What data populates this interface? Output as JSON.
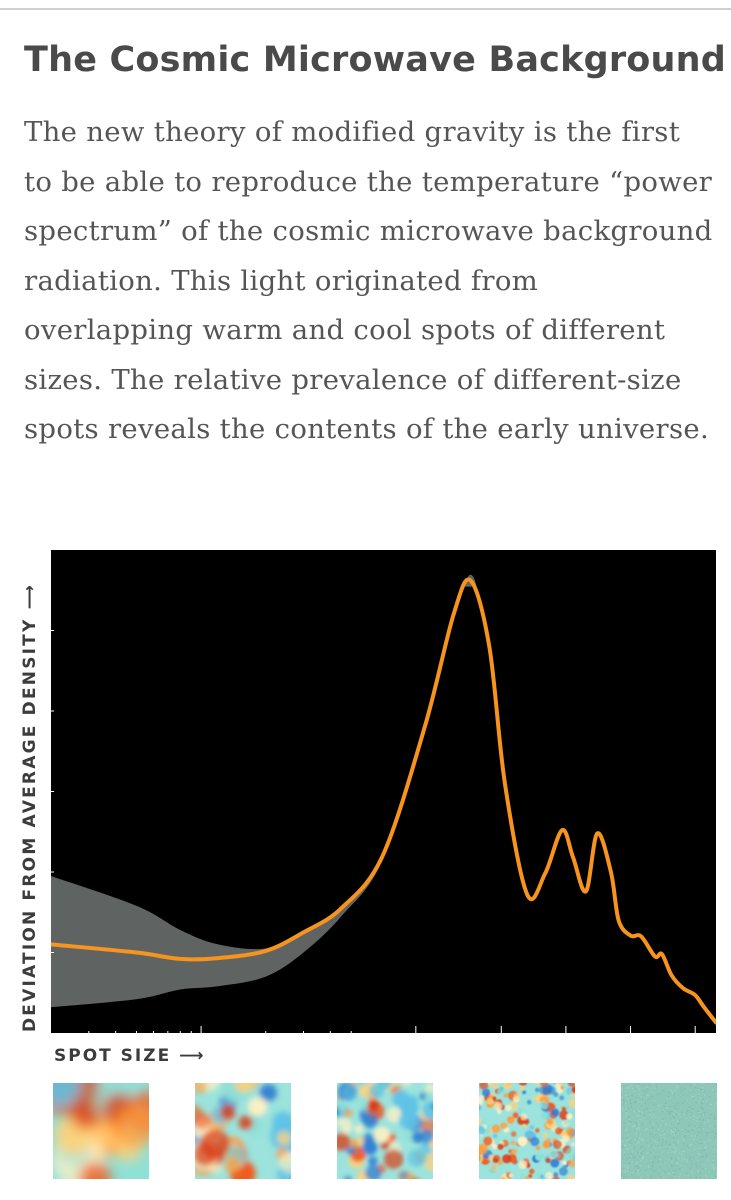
{
  "title": "The Cosmic Microwave Background",
  "paragraph": "The new theory of modified gravity is the first to be able to reproduce the temperature “power spectrum” of the cosmic microwave background radiation. This light originated from overlapping warm and cool spots of different sizes. The relative prevalence of different-size spots reveals the contents of the early universe.",
  "colors": {
    "curve": "#f7941d",
    "band": "#5f6462",
    "background": "#000000",
    "text": "#555555"
  },
  "chart_data": {
    "type": "line",
    "xlabel": "SPOT SIZE ⟶",
    "ylabel": "DEVIATION FROM AVERAGE DENSITY ⟶",
    "x_scale": "log",
    "xlim": [
      2,
      2500
    ],
    "ylim": [
      0,
      6000
    ],
    "grid": false,
    "series": [
      {
        "x": [
          2,
          5,
          8,
          12,
          20,
          30,
          45,
          70,
          110,
          150,
          180,
          220,
          260,
          330,
          400,
          480,
          540,
          620,
          700,
          810,
          880,
          1000,
          1120,
          1300,
          1400,
          1550,
          1750,
          2000,
          2200,
          2500
        ],
        "y": [
          1100,
          1000,
          920,
          930,
          1020,
          1250,
          1550,
          2200,
          3800,
          5200,
          5620,
          4800,
          3100,
          1720,
          1980,
          2520,
          2180,
          1760,
          2480,
          2000,
          1400,
          1210,
          1200,
          950,
          980,
          720,
          560,
          470,
          320,
          130
        ]
      }
    ],
    "band": {
      "x": [
        2,
        5,
        8,
        12,
        20,
        30,
        45,
        70,
        110
      ],
      "upper": [
        1950,
        1580,
        1280,
        1100,
        1050,
        1250,
        1550,
        2250,
        3800
      ],
      "lower": [
        320,
        420,
        540,
        580,
        700,
        1000,
        1450,
        2150,
        3800
      ]
    },
    "spot_maps": [
      {
        "label": "large spots"
      },
      {
        "label": "medium-large spots"
      },
      {
        "label": "medium spots"
      },
      {
        "label": "small spots"
      },
      {
        "label": "smallest spots"
      }
    ]
  }
}
